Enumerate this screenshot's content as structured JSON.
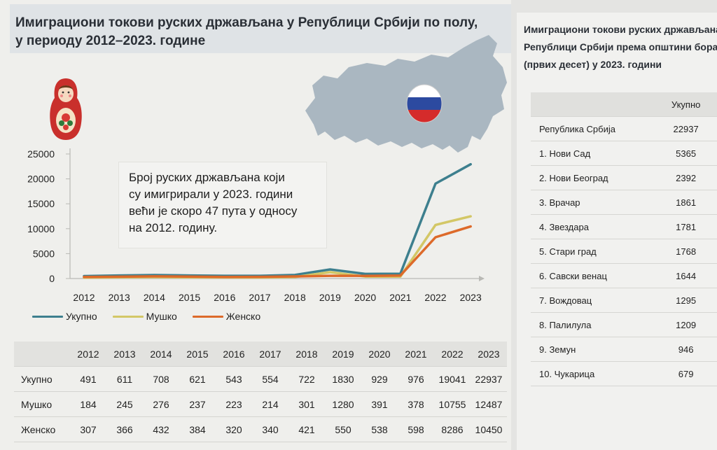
{
  "title": {
    "line1": "Имиграциони токови руских држављана у Републици Србији по полу,",
    "line2": "у периоду 2012–2023. године"
  },
  "callout": {
    "line1": "Број руских држављана који",
    "line2": "су имигрирали у 2023. години",
    "line3": "већи је скоро 47 пута у односу",
    "line4": "на 2012. годину."
  },
  "colors": {
    "total": "#3d7f8e",
    "male": "#d3c766",
    "female": "#dd6a2a",
    "flag_white": "#ffffff",
    "flag_blue": "#2c4aa0",
    "flag_red": "#d52b2b",
    "map": "#aab7c1"
  },
  "icons": {
    "map": "russia-map",
    "flag": "russian-flag-circle",
    "doll": "matryoshka-doll"
  },
  "chart_data": {
    "type": "line",
    "x": [
      "2012",
      "2013",
      "2014",
      "2015",
      "2016",
      "2017",
      "2018",
      "2019",
      "2020",
      "2021",
      "2022",
      "2023"
    ],
    "series": [
      {
        "name": "Укупно",
        "values": [
          491,
          611,
          708,
          621,
          543,
          554,
          722,
          1830,
          929,
          976,
          19041,
          22937
        ]
      },
      {
        "name": "Мушко",
        "values": [
          184,
          245,
          276,
          237,
          223,
          214,
          301,
          1280,
          391,
          378,
          10755,
          12487
        ]
      },
      {
        "name": "Женско",
        "values": [
          307,
          366,
          432,
          384,
          320,
          340,
          421,
          550,
          538,
          598,
          8286,
          10450
        ]
      }
    ],
    "ylim": [
      0,
      25000
    ],
    "yticks": [
      "0",
      "5000",
      "10000",
      "15000",
      "20000",
      "25000"
    ],
    "legend": "bottom-left",
    "grid": false
  },
  "table": {
    "headers": [
      "2012",
      "2013",
      "2014",
      "2015",
      "2016",
      "2017",
      "2018",
      "2019",
      "2020",
      "2021",
      "2022",
      "2023"
    ],
    "rows": [
      {
        "label": "Укупно",
        "values": [
          "491",
          "611",
          "708",
          "621",
          "543",
          "554",
          "722",
          "1830",
          "929",
          "976",
          "19041",
          "22937"
        ]
      },
      {
        "label": "Мушко",
        "values": [
          "184",
          "245",
          "276",
          "237",
          "223",
          "214",
          "301",
          "1280",
          "391",
          "378",
          "10755",
          "12487"
        ]
      },
      {
        "label": "Женско",
        "values": [
          "307",
          "366",
          "432",
          "384",
          "320",
          "340",
          "421",
          "550",
          "538",
          "598",
          "8286",
          "10450"
        ]
      }
    ]
  },
  "side": {
    "title1": "Имиграциони токови руских држављана  у",
    "title2": "Републици Србији  према општини боравка",
    "title3": "(првих десет) у 2023. години",
    "col_header": "Укупно",
    "rows": [
      {
        "name": "Република Србија",
        "value": "22937"
      },
      {
        "name": "1. Нови Сад",
        "value": "5365"
      },
      {
        "name": "2. Нови Београд",
        "value": "2392"
      },
      {
        "name": "3. Врачар",
        "value": "1861"
      },
      {
        "name": "4. Звездара",
        "value": "1781"
      },
      {
        "name": "5. Стари град",
        "value": "1768"
      },
      {
        "name": "6. Савски венац",
        "value": "1644"
      },
      {
        "name": "7. Вождовац",
        "value": "1295"
      },
      {
        "name": "8. Палилула",
        "value": "1209"
      },
      {
        "name": "9. Земун",
        "value": "946"
      },
      {
        "name": "10. Чукарица",
        "value": "679"
      }
    ]
  }
}
